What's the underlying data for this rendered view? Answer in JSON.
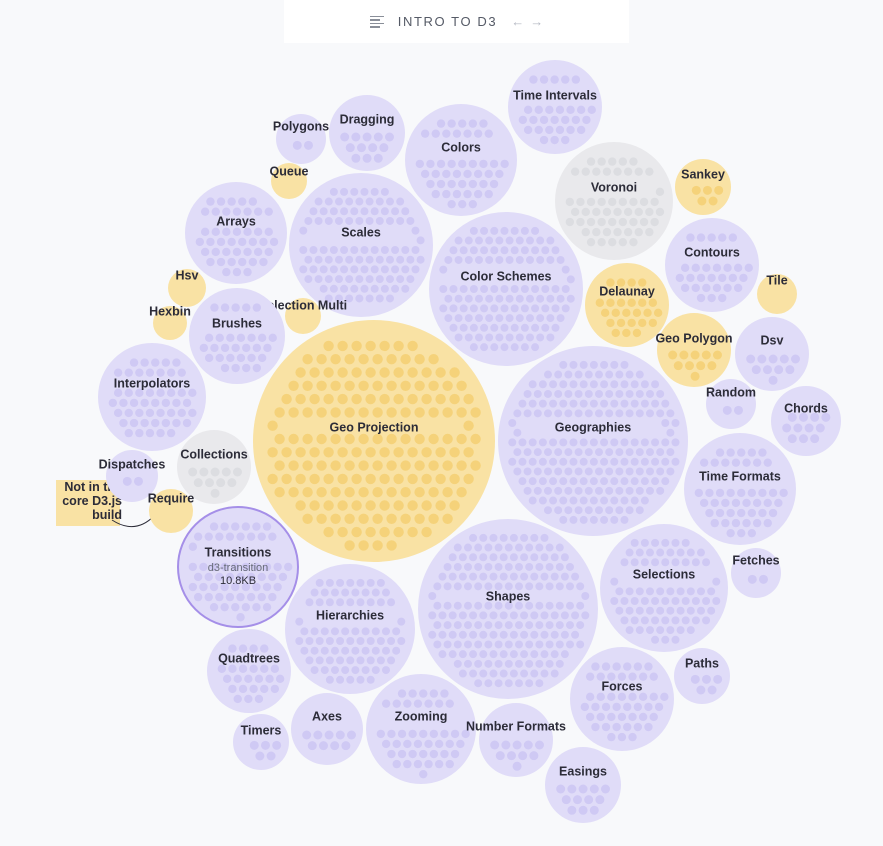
{
  "header": {
    "title": "INTRO TO D3",
    "menu_icon": "list-icon",
    "prev_icon": "arrow-left-icon",
    "next_icon": "arrow-right-icon"
  },
  "legend_note": {
    "text_line1": "Not in the",
    "text_line2": "core D3.js",
    "text_line3": "build"
  },
  "colors": {
    "core": "#e0dcf8",
    "core_dot": "#cfc9f4",
    "not_core": "#f9e2a4",
    "not_core_dot": "#f5d27a",
    "gray": "#e9e9ec",
    "gray_dot": "#dcdde1",
    "selected_stroke": "#a58fe8",
    "label": "#2c2c38",
    "sublabel": "#666a78"
  },
  "selected": {
    "name": "Transitions",
    "module": "d3-transition",
    "size": "10.8KB"
  },
  "modules": [
    {
      "name": "Time Intervals",
      "kind": "core"
    },
    {
      "name": "Dragging",
      "kind": "core"
    },
    {
      "name": "Polygons",
      "kind": "core"
    },
    {
      "name": "Colors",
      "kind": "core"
    },
    {
      "name": "Queue",
      "kind": "not_core"
    },
    {
      "name": "Voronoi",
      "kind": "gray"
    },
    {
      "name": "Sankey",
      "kind": "not_core"
    },
    {
      "name": "Arrays",
      "kind": "core"
    },
    {
      "name": "Scales",
      "kind": "core"
    },
    {
      "name": "Color Schemes",
      "kind": "core"
    },
    {
      "name": "Contours",
      "kind": "core"
    },
    {
      "name": "Tile",
      "kind": "not_core"
    },
    {
      "name": "Hsv",
      "kind": "not_core"
    },
    {
      "name": "Delaunay",
      "kind": "not_core"
    },
    {
      "name": "Hexbin",
      "kind": "not_core"
    },
    {
      "name": "Selection Multi",
      "kind": "not_core"
    },
    {
      "name": "Brushes",
      "kind": "core"
    },
    {
      "name": "Geo Polygon",
      "kind": "not_core"
    },
    {
      "name": "Dsv",
      "kind": "core"
    },
    {
      "name": "Interpolators",
      "kind": "core"
    },
    {
      "name": "Random",
      "kind": "core"
    },
    {
      "name": "Chords",
      "kind": "core"
    },
    {
      "name": "Geo Projection",
      "kind": "not_core"
    },
    {
      "name": "Geographies",
      "kind": "core"
    },
    {
      "name": "Collections",
      "kind": "gray"
    },
    {
      "name": "Dispatches",
      "kind": "core"
    },
    {
      "name": "Time Formats",
      "kind": "core"
    },
    {
      "name": "Require",
      "kind": "not_core"
    },
    {
      "name": "Transitions",
      "kind": "core"
    },
    {
      "name": "Fetches",
      "kind": "core"
    },
    {
      "name": "Selections",
      "kind": "core"
    },
    {
      "name": "Shapes",
      "kind": "core"
    },
    {
      "name": "Hierarchies",
      "kind": "core"
    },
    {
      "name": "Quadtrees",
      "kind": "core"
    },
    {
      "name": "Paths",
      "kind": "core"
    },
    {
      "name": "Forces",
      "kind": "core"
    },
    {
      "name": "Axes",
      "kind": "core"
    },
    {
      "name": "Zooming",
      "kind": "core"
    },
    {
      "name": "Number Formats",
      "kind": "core"
    },
    {
      "name": "Timers",
      "kind": "core"
    },
    {
      "name": "Easings",
      "kind": "core"
    }
  ]
}
